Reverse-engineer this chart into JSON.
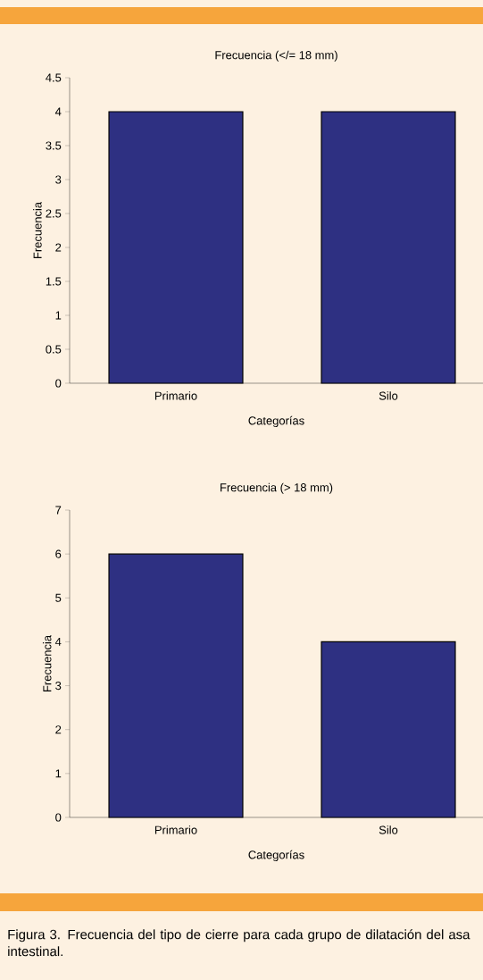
{
  "chart_data": [
    {
      "type": "bar",
      "title": "Frecuencia (</= 18 mm)",
      "xlabel": "Categorías",
      "ylabel": "Frecuencia",
      "categories": [
        "Primario",
        "Silo"
      ],
      "values": [
        4,
        4
      ],
      "color": "#2e3082",
      "ylim": [
        0,
        4.5
      ],
      "yticks": [
        0,
        0.5,
        1,
        1.5,
        2,
        2.5,
        3,
        3.5,
        4,
        4.5
      ]
    },
    {
      "type": "bar",
      "title": "Frecuencia (> 18 mm)",
      "xlabel": "Categorías",
      "ylabel": "Frecuencia",
      "categories": [
        "Primario",
        "Silo"
      ],
      "values": [
        6,
        4
      ],
      "color": "#2e3082",
      "ylim": [
        0,
        7
      ],
      "yticks": [
        0,
        1,
        2,
        3,
        4,
        5,
        6,
        7
      ],
      "annotations": [
        "Figura 3. Frecuencia del tipo de cierre para cada grupo de dilatación del asa intestinal."
      ]
    }
  ]
}
